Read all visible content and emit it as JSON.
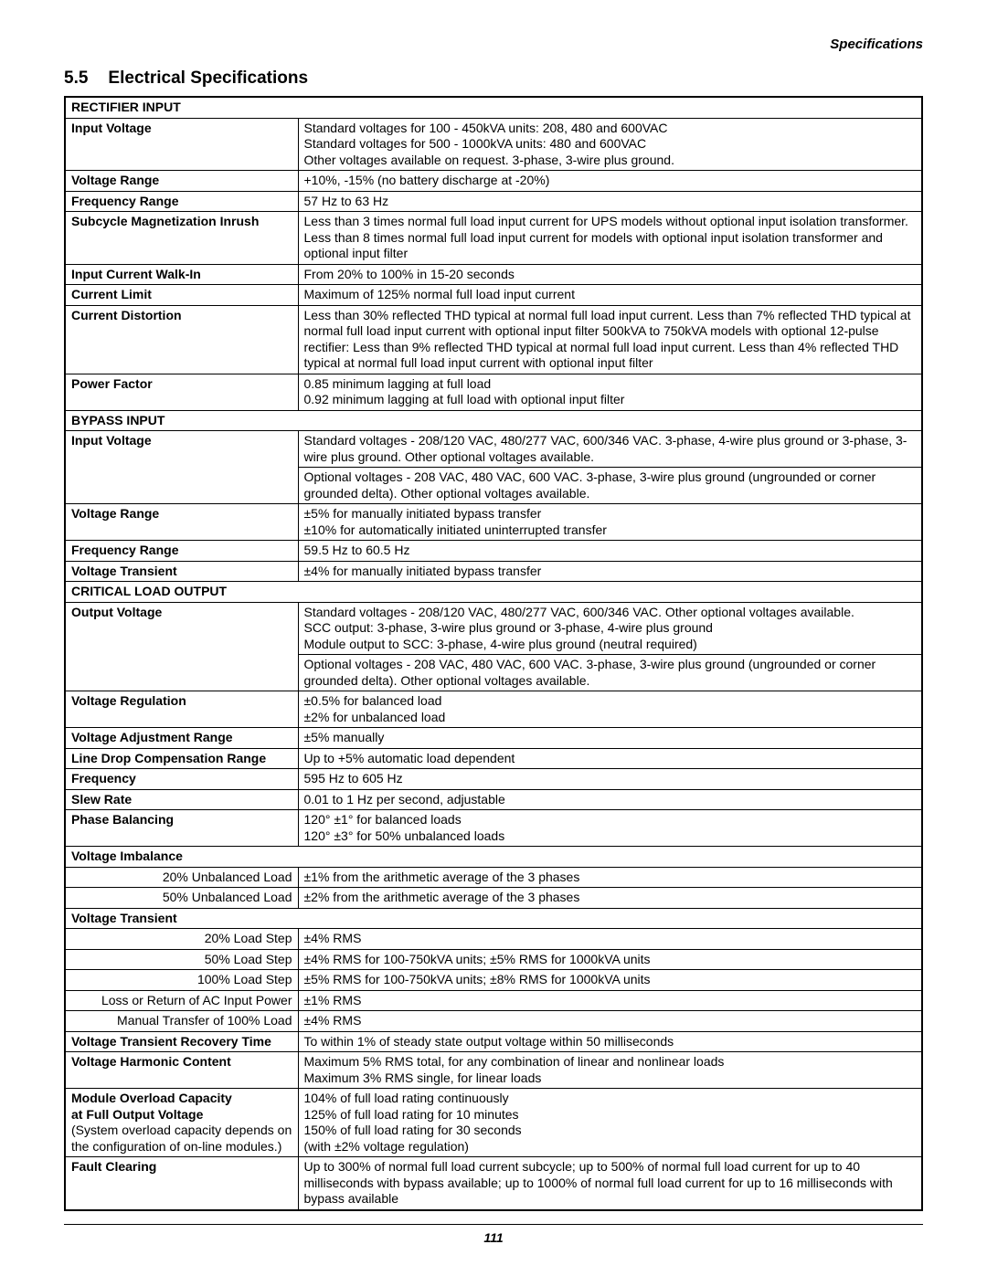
{
  "header": "Specifications",
  "section_number": "5.5",
  "section_title": "Electrical Specifications",
  "page_number": "111",
  "rectifier": {
    "title": "RECTIFIER INPUT",
    "input_voltage": {
      "label": "Input Voltage",
      "value": "Standard voltages for 100 - 450kVA units: 208, 480 and 600VAC\nStandard voltages for 500 - 1000kVA units: 480 and 600VAC\nOther voltages available on request. 3-phase, 3-wire plus ground."
    },
    "voltage_range": {
      "label": "Voltage Range",
      "value": "+10%, -15% (no battery discharge at -20%)"
    },
    "frequency_range": {
      "label": "Frequency Range",
      "value": "57 Hz to 63 Hz"
    },
    "subcycle": {
      "label": "Subcycle Magnetization Inrush",
      "value": "Less than 3 times normal full load input current for UPS models without optional input isolation transformer. Less than 8 times normal full load input current for models with optional input isolation transformer and optional input filter"
    },
    "walkin": {
      "label": "Input Current Walk-In",
      "value": "From 20% to 100% in 15-20 seconds"
    },
    "current_limit": {
      "label": "Current Limit",
      "value": "Maximum of 125% normal full load input current"
    },
    "distortion": {
      "label": "Current Distortion",
      "value": "Less than 30% reflected THD typical at normal full load input current. Less than 7% reflected THD typical at normal full load input current with optional input filter 500kVA to 750kVA models with optional 12-pulse rectifier: Less than 9% reflected THD typical at normal full load input current. Less than 4% reflected THD typical at normal full load input current with optional input filter"
    },
    "power_factor": {
      "label": "Power Factor",
      "value": "0.85 minimum lagging at full load\n0.92 minimum lagging at full load with optional input filter"
    }
  },
  "bypass": {
    "title": "BYPASS INPUT",
    "input_voltage": {
      "label": "Input Voltage",
      "value1": "Standard voltages - 208/120 VAC, 480/277 VAC, 600/346 VAC. 3-phase, 4-wire plus ground or 3-phase, 3-wire plus ground. Other optional voltages available.",
      "value2": "Optional voltages - 208 VAC, 480 VAC, 600 VAC. 3-phase, 3-wire plus ground (ungrounded or corner grounded delta). Other optional voltages available."
    },
    "voltage_range": {
      "label": "Voltage Range",
      "value": "±5% for manually initiated bypass transfer\n±10% for automatically initiated uninterrupted transfer"
    },
    "frequency_range": {
      "label": "Frequency Range",
      "value": "59.5 Hz to 60.5 Hz"
    },
    "voltage_transient": {
      "label": "Voltage Transient",
      "value": "±4% for manually initiated bypass transfer"
    }
  },
  "critical": {
    "title": "CRITICAL LOAD OUTPUT",
    "output_voltage": {
      "label": "Output Voltage",
      "value1": "Standard voltages - 208/120 VAC, 480/277 VAC, 600/346 VAC. Other optional voltages available.\nSCC output: 3-phase, 3-wire plus ground or 3-phase, 4-wire plus ground\nModule output to SCC: 3-phase, 4-wire plus ground (neutral required)",
      "value2": "Optional voltages - 208 VAC, 480 VAC, 600 VAC. 3-phase, 3-wire plus ground (ungrounded or corner grounded delta). Other optional voltages available."
    },
    "voltage_regulation": {
      "label": "Voltage Regulation",
      "value": "±0.5% for balanced load\n±2% for unbalanced load"
    },
    "voltage_adjustment": {
      "label": "Voltage Adjustment Range",
      "value": "±5% manually"
    },
    "line_drop": {
      "label": "Line Drop Compensation Range",
      "value": "Up to +5% automatic load dependent"
    },
    "frequency": {
      "label": "Frequency",
      "value": "595 Hz to 605 Hz"
    },
    "slew_rate": {
      "label": "Slew Rate",
      "value": "0.01 to 1 Hz per second, adjustable"
    },
    "phase_balancing": {
      "label": "Phase Balancing",
      "value": "120° ±1° for balanced loads\n120° ±3° for 50% unbalanced loads"
    },
    "voltage_imbalance": {
      "label": "Voltage Imbalance"
    },
    "imbalance_20": {
      "label": "20% Unbalanced Load",
      "value": "±1% from the arithmetic average of the 3 phases"
    },
    "imbalance_50": {
      "label": "50% Unbalanced Load",
      "value": "±2% from the arithmetic average of the 3 phases"
    },
    "voltage_transient": {
      "label": "Voltage Transient"
    },
    "step_20": {
      "label": "20% Load Step",
      "value": "±4% RMS"
    },
    "step_50": {
      "label": "50% Load Step",
      "value": "±4% RMS for 100-750kVA units; ±5% RMS for 1000kVA units"
    },
    "step_100": {
      "label": "100% Load Step",
      "value": "±5% RMS for 100-750kVA units; ±8% RMS for 1000kVA units"
    },
    "loss_return": {
      "label": "Loss or Return of AC Input Power",
      "value": "±1% RMS"
    },
    "manual_transfer": {
      "label": "Manual Transfer of 100% Load",
      "value": "±4% RMS"
    },
    "transient_recovery": {
      "label": "Voltage Transient Recovery Time",
      "value": "To within 1% of steady state output voltage within 50 milliseconds"
    },
    "harmonic_content": {
      "label": "Voltage Harmonic Content",
      "value": "Maximum 5% RMS total, for any combination of linear and nonlinear loads\nMaximum 3% RMS single, for linear loads"
    },
    "overload": {
      "label1": "Module Overload Capacity",
      "label2": "at Full Output Voltage",
      "note1": "(System overload capacity depends on",
      "note2": "the configuration of on-line modules.)",
      "value": "104% of full load rating continuously\n125% of full load rating for 10 minutes\n150% of full load rating for 30 seconds\n(with ±2% voltage regulation)"
    },
    "fault_clearing": {
      "label": "Fault Clearing",
      "value": "Up to 300% of normal full load current subcycle; up to 500% of normal full load current for up to 40 milliseconds with bypass available; up to 1000% of normal full load current for up to 16 milliseconds with bypass available"
    }
  }
}
